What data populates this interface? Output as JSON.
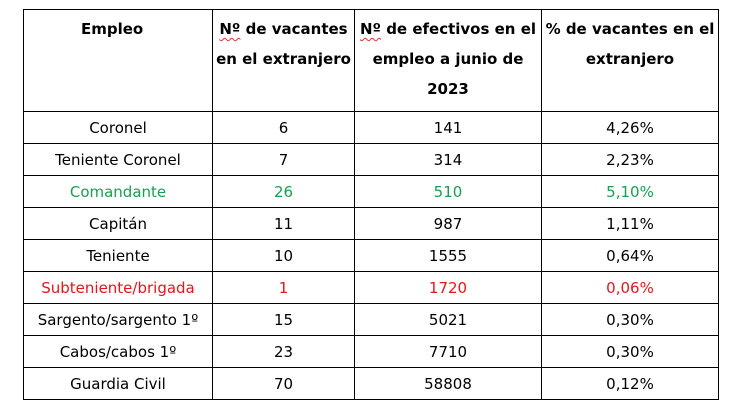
{
  "table": {
    "headers": {
      "empleo": "Empleo",
      "vacantes_abbr": "Nº",
      "vacantes_rest": " de vacantes en el extranjero",
      "efectivos_abbr": "Nº",
      "efectivos_rest": " de efectivos en el empleo a junio de 2023",
      "porcentaje": "% de vacantes en el extranjero"
    },
    "rows": [
      {
        "empleo": "Coronel",
        "vacantes": "6",
        "efectivos": "141",
        "porcentaje": "4,26%"
      },
      {
        "empleo": "Teniente Coronel",
        "vacantes": "7",
        "efectivos": "314",
        "porcentaje": "2,23%"
      },
      {
        "empleo": "Comandante",
        "vacantes": "26",
        "efectivos": "510",
        "porcentaje": "5,10%"
      },
      {
        "empleo": "Capitán",
        "vacantes": "11",
        "efectivos": "987",
        "porcentaje": "1,11%"
      },
      {
        "empleo": "Teniente",
        "vacantes": "10",
        "efectivos": "1555",
        "porcentaje": "0,64%"
      },
      {
        "empleo": "Subteniente/brigada",
        "vacantes": "1",
        "efectivos": "1720",
        "porcentaje": "0,06%"
      },
      {
        "empleo": "Sargento/sargento 1º",
        "vacantes": "15",
        "efectivos": "5021",
        "porcentaje": "0,30%"
      },
      {
        "empleo": "Cabos/cabos 1º",
        "vacantes": "23",
        "efectivos": "7710",
        "porcentaje": "0,30%"
      },
      {
        "empleo": "Guardia Civil",
        "vacantes": "70",
        "efectivos": "58808",
        "porcentaje": "0,12%"
      }
    ]
  },
  "colors": {
    "highlight_green": "#18a050",
    "highlight_red": "#e8141c",
    "border": "#000000"
  }
}
